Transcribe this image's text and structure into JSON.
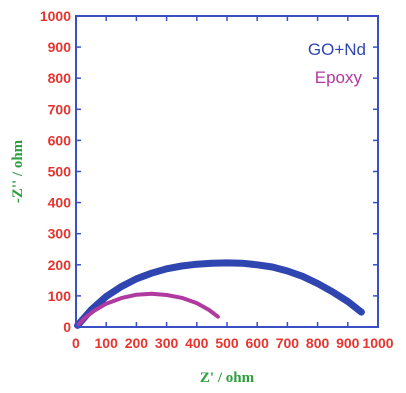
{
  "chart_data": {
    "type": "line",
    "title": "",
    "xlabel": "Z' / ohm",
    "ylabel": "-Z'' / ohm",
    "xlim": [
      0,
      1000
    ],
    "ylim": [
      0,
      1000
    ],
    "xticks": [
      "0",
      "100",
      "200",
      "300",
      "400",
      "500",
      "600",
      "700",
      "800",
      "900",
      "1000"
    ],
    "yticks": [
      "0",
      "100",
      "200",
      "300",
      "400",
      "500",
      "600",
      "700",
      "800",
      "900",
      "1000"
    ],
    "legend_position": "top-right",
    "grid": false,
    "series": [
      {
        "name": "GO+Nd",
        "color": "#2f45b0",
        "x": [
          5,
          50,
          100,
          150,
          200,
          250,
          300,
          350,
          400,
          450,
          500,
          550,
          600,
          650,
          700,
          750,
          800,
          850,
          900,
          945
        ],
        "y": [
          5,
          55,
          98,
          130,
          155,
          173,
          187,
          196,
          202,
          205,
          206,
          205,
          200,
          193,
          180,
          163,
          140,
          113,
          82,
          48
        ]
      },
      {
        "name": "Epoxy",
        "color": "#b03aa0",
        "x": [
          5,
          30,
          60,
          100,
          150,
          200,
          250,
          300,
          350,
          400,
          440,
          470
        ],
        "y": [
          5,
          30,
          52,
          75,
          93,
          104,
          107,
          103,
          94,
          77,
          55,
          33
        ]
      }
    ],
    "colors": {
      "axis": "#3a4fc4",
      "tick_label": "#e8342f",
      "axis_title": "#2e9e3e"
    }
  }
}
